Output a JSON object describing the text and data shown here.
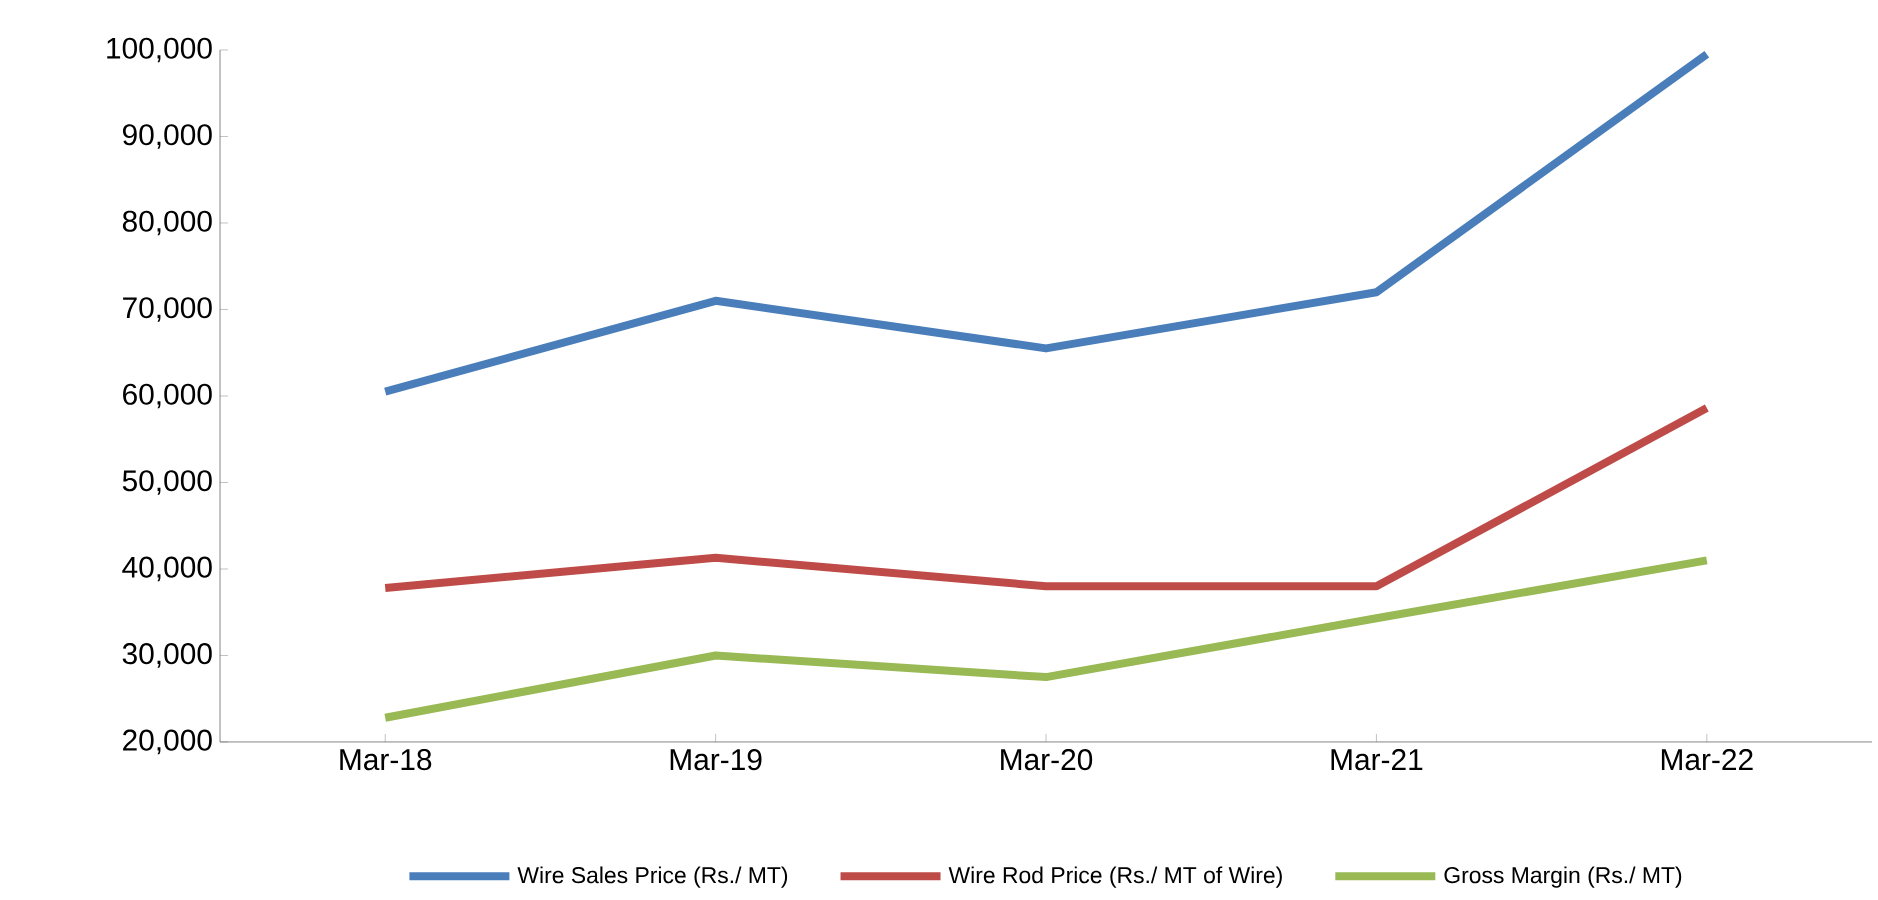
{
  "chart_data": {
    "type": "line",
    "categories": [
      "Mar-18",
      "Mar-19",
      "Mar-20",
      "Mar-21",
      "Mar-22"
    ],
    "series": [
      {
        "name": "Wire Sales Price (Rs./ MT)",
        "color": "#4a7ebb",
        "values": [
          60500,
          71000,
          65500,
          72000,
          99500
        ]
      },
      {
        "name": "Wire Rod Price (Rs./ MT of Wire)",
        "color": "#be4b48",
        "values": [
          37800,
          41300,
          38000,
          38000,
          58600
        ]
      },
      {
        "name": "Gross Margin (Rs./ MT)",
        "color": "#98b954",
        "values": [
          22800,
          30000,
          27500,
          34300,
          41000
        ]
      }
    ],
    "ylim": [
      20000,
      100000
    ],
    "yticks": [
      {
        "value": 20000,
        "label": "20,000"
      },
      {
        "value": 30000,
        "label": "30,000"
      },
      {
        "value": 40000,
        "label": "40,000"
      },
      {
        "value": 50000,
        "label": "50,000"
      },
      {
        "value": 60000,
        "label": "60,000"
      },
      {
        "value": 70000,
        "label": "70,000"
      },
      {
        "value": 80000,
        "label": "80,000"
      },
      {
        "value": 90000,
        "label": "90,000"
      },
      {
        "value": 100000,
        "label": "100,000"
      }
    ],
    "grid": false,
    "legend": "bottom",
    "marker": "none",
    "line_style": "solid"
  }
}
